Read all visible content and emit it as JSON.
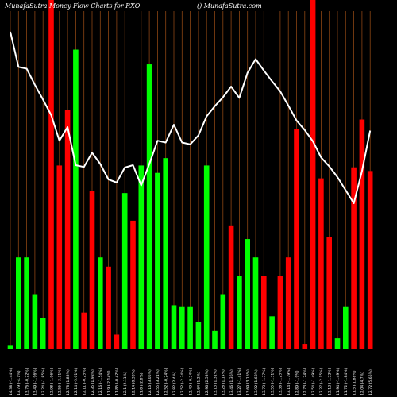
{
  "header": {
    "left": "MunafaSutra Money Flow Charts for RXO",
    "right": "() MunafaSutra.com"
  },
  "colors": {
    "background": "#000000",
    "grid": "#8b4513",
    "up": "#00ff00",
    "down": "#ff0000",
    "line": "#ffffff"
  },
  "chart_data": {
    "type": "bar",
    "title": "MunafaSutra Money Flow Charts for RXO",
    "grid": true,
    "categories": [
      "14.38 (-1.44%)",
      "13.79 (-4.1%)",
      "13.76 (-0.22%)",
      "13.49 (-1.96%)",
      "13.24 (-1.85%)",
      "12.98 (-1.96%)",
      "12.55 (-3.31%)",
      "12.78 (1.83%)",
      "12.14 (-5.01%)",
      "12.11 (-0.25%)",
      "12.35 (1.98%)",
      "12.16 (-1.54%)",
      "11.9 (-2.14%)",
      "11.85 (-0.42%)",
      "12.1 (2.11%)",
      "12.14 (0.33%)",
      "11.8 (-2.8%)",
      "12.16 (3.05%)",
      "12.55 (3.21%)",
      "12.52 (-0.24%)",
      "12.82 (2.4%)",
      "12.52 (-2.34%)",
      "12.49 (-0.24%)",
      "12.64 (1.2%)",
      "12.96 (2.53%)",
      "13.13 (1.31%)",
      "13.28 (1.14%)",
      "13.46 (1.36%)",
      "13.27 (-1.41%)",
      "13.69 (3.16%)",
      "13.92 (1.68%)",
      "13.73 (-1.37%)",
      "13.55 (-1.31%)",
      "13.38 (-1.25%)",
      "13.14 (-1.79%)",
      "12.89 (-1.9%)",
      "12.73 (-1.24%)",
      "12.54 (-1.49%)",
      "12.27 (-2.15%)",
      "12.12 (-1.22%)",
      "11.94 (-1.49%)",
      "11.72 (-1.84%)",
      "11.5 (-1.88%)",
      "12.04 (4.7%)",
      "12.72 (5.65%)"
    ],
    "series": [
      {
        "values": [
          2,
          50,
          50,
          30,
          17,
          190,
          100,
          130,
          163,
          20,
          86,
          50,
          45,
          8,
          85,
          70,
          100,
          155,
          96,
          104,
          24,
          23,
          23,
          15,
          100,
          10,
          30,
          67,
          40,
          60,
          50,
          40,
          18,
          40,
          50,
          120,
          3,
          190,
          93,
          61,
          6,
          23,
          99,
          125,
          97
        ],
        "direction": [
          "up",
          "up",
          "up",
          "up",
          "up",
          "down",
          "down",
          "down",
          "up",
          "down",
          "down",
          "up",
          "down",
          "down",
          "up",
          "down",
          "up",
          "up",
          "up",
          "up",
          "up",
          "up",
          "up",
          "up",
          "up",
          "up",
          "up",
          "down",
          "up",
          "up",
          "up",
          "down",
          "up",
          "down",
          "down",
          "down",
          "down",
          "down",
          "down",
          "down",
          "up",
          "up",
          "down",
          "down",
          "down"
        ]
      }
    ],
    "price_line": [
      14.38,
      13.79,
      13.76,
      13.49,
      13.24,
      12.98,
      12.55,
      12.78,
      12.14,
      12.11,
      12.35,
      12.16,
      11.9,
      11.85,
      12.1,
      12.14,
      11.8,
      12.16,
      12.55,
      12.52,
      12.82,
      12.52,
      12.49,
      12.64,
      12.96,
      13.13,
      13.28,
      13.46,
      13.27,
      13.69,
      13.92,
      13.73,
      13.55,
      13.38,
      13.14,
      12.89,
      12.73,
      12.54,
      12.27,
      12.12,
      11.94,
      11.72,
      11.5,
      12.04,
      12.72
    ]
  }
}
